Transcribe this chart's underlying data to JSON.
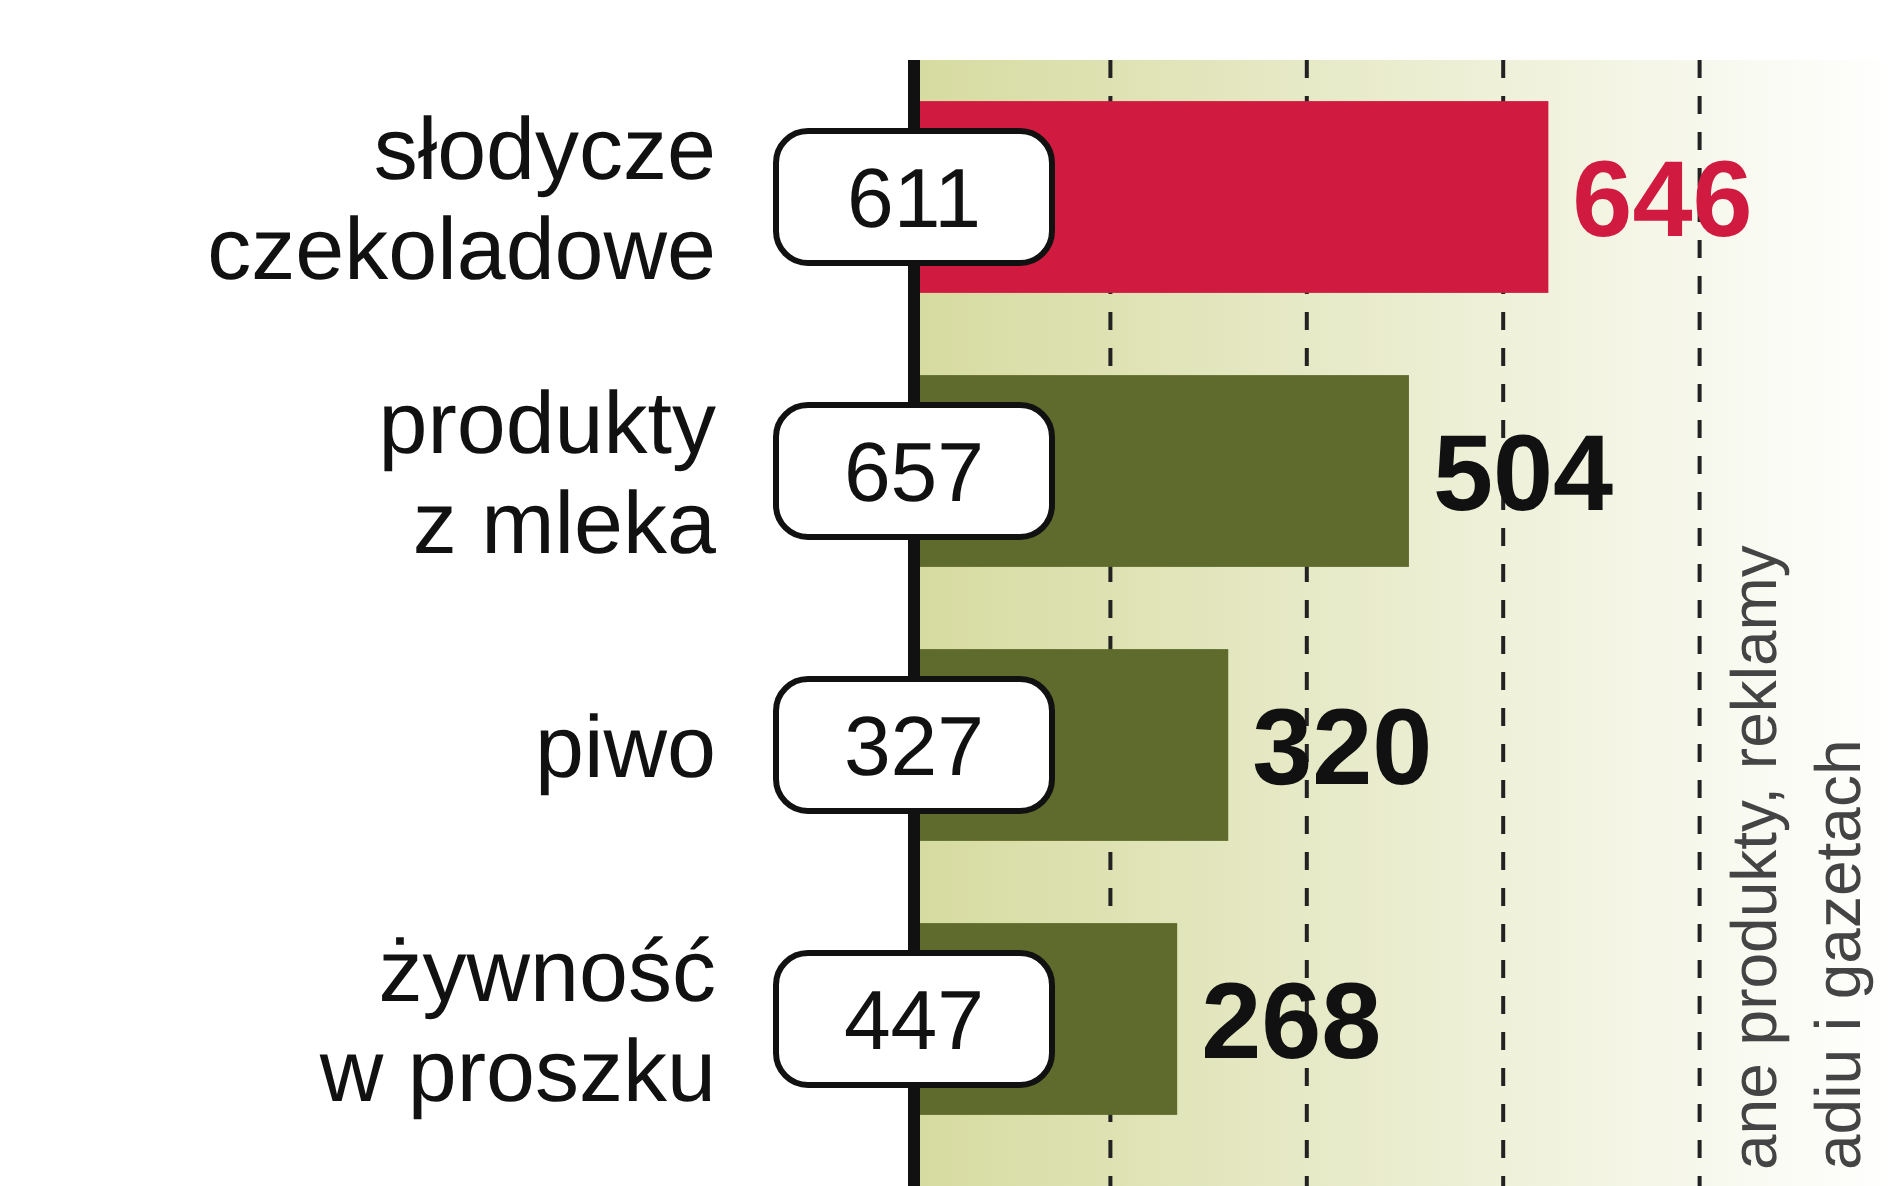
{
  "chart_data": {
    "type": "bar",
    "orientation": "horizontal",
    "categories": [
      "słodycze\nczekoladowe",
      "produkty\nz mleka",
      "piwo",
      "żywność\nw proszku"
    ],
    "values": [
      646,
      504,
      320,
      268
    ],
    "colors": [
      "#d11a3f",
      "#5f6b2c",
      "#5f6b2c",
      "#5f6b2c"
    ],
    "data_labels": true,
    "xlim": [
      0,
      1000
    ],
    "xticks": [
      {
        "value": 200,
        "label": null
      },
      {
        "value": 400,
        "label": null
      },
      {
        "value": 600,
        "label": null
      },
      {
        "value": 800,
        "label": null
      }
    ],
    "grid": "x",
    "tick_labels": "y",
    "annotations": [
      {
        "text": "611",
        "y": "słodycze\nczekoladowe"
      },
      {
        "text": "657",
        "y": "produkty\nz mleka"
      },
      {
        "text": "327",
        "y": "piwo"
      },
      {
        "text": "447",
        "y": "żywność\nw proszku"
      },
      "ane produkty, reklamy",
      "adiu i gazetach"
    ]
  }
}
